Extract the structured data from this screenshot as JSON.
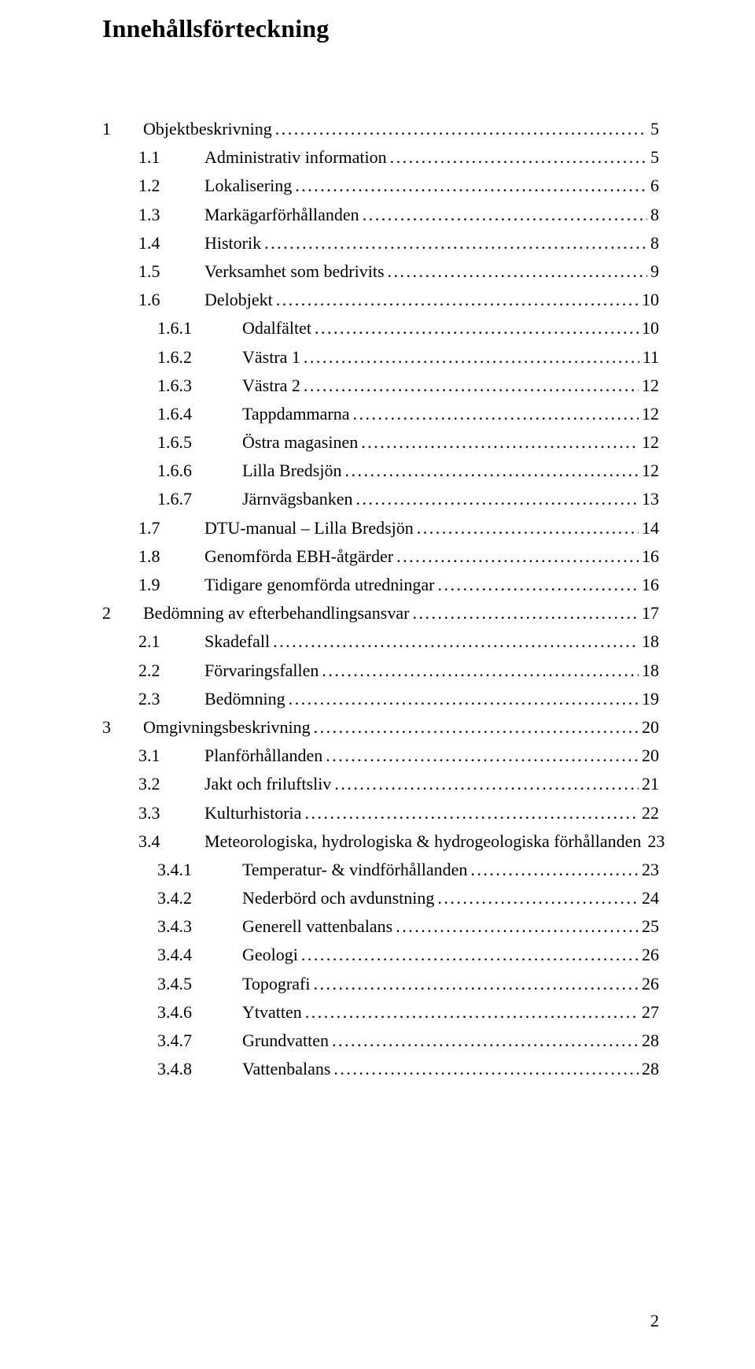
{
  "title": "Innehållsförteckning",
  "page_number": "2",
  "leader_char": ".",
  "entries": [
    {
      "level": 1,
      "num": "1",
      "text": "Objektbeskrivning",
      "page": "5"
    },
    {
      "level": 2,
      "num": "1.1",
      "text": "Administrativ information",
      "page": "5"
    },
    {
      "level": 2,
      "num": "1.2",
      "text": "Lokalisering",
      "page": "6"
    },
    {
      "level": 2,
      "num": "1.3",
      "text": "Markägarförhållanden",
      "page": "8"
    },
    {
      "level": 2,
      "num": "1.4",
      "text": "Historik",
      "page": "8"
    },
    {
      "level": 2,
      "num": "1.5",
      "text": "Verksamhet som bedrivits",
      "page": "9"
    },
    {
      "level": 2,
      "num": "1.6",
      "text": "Delobjekt",
      "page": "10"
    },
    {
      "level": 3,
      "num": "1.6.1",
      "text": "Odalfältet",
      "page": "10"
    },
    {
      "level": 3,
      "num": "1.6.2",
      "text": "Västra 1",
      "page": "11"
    },
    {
      "level": 3,
      "num": "1.6.3",
      "text": "Västra 2",
      "page": "12"
    },
    {
      "level": 3,
      "num": "1.6.4",
      "text": "Tappdammarna",
      "page": "12"
    },
    {
      "level": 3,
      "num": "1.6.5",
      "text": "Östra magasinen",
      "page": "12"
    },
    {
      "level": 3,
      "num": "1.6.6",
      "text": "Lilla Bredsjön",
      "page": "12"
    },
    {
      "level": 3,
      "num": "1.6.7",
      "text": "Järnvägsbanken",
      "page": "13"
    },
    {
      "level": 2,
      "num": "1.7",
      "text": "DTU-manual – Lilla Bredsjön",
      "page": "14"
    },
    {
      "level": 2,
      "num": "1.8",
      "text": "Genomförda EBH-åtgärder",
      "page": "16"
    },
    {
      "level": 2,
      "num": "1.9",
      "text": "Tidigare genomförda utredningar",
      "page": "16"
    },
    {
      "level": 1,
      "num": "2",
      "text": "Bedömning av efterbehandlingsansvar",
      "page": "17"
    },
    {
      "level": 2,
      "num": "2.1",
      "text": "Skadefall",
      "page": "18"
    },
    {
      "level": 2,
      "num": "2.2",
      "text": "Förvaringsfallen",
      "page": "18"
    },
    {
      "level": 2,
      "num": "2.3",
      "text": "Bedömning",
      "page": "19"
    },
    {
      "level": 1,
      "num": "3",
      "text": "Omgivningsbeskrivning",
      "page": "20"
    },
    {
      "level": 2,
      "num": "3.1",
      "text": "Planförhållanden",
      "page": "20"
    },
    {
      "level": 2,
      "num": "3.2",
      "text": "Jakt och friluftsliv",
      "page": "21"
    },
    {
      "level": 2,
      "num": "3.3",
      "text": "Kulturhistoria",
      "page": "22"
    },
    {
      "level": 2,
      "num": "3.4",
      "text": "Meteorologiska, hydrologiska & hydrogeologiska förhållanden",
      "page": "23"
    },
    {
      "level": 3,
      "num": "3.4.1",
      "text": "Temperatur- & vindförhållanden",
      "page": "23"
    },
    {
      "level": 3,
      "num": "3.4.2",
      "text": "Nederbörd och avdunstning",
      "page": "24"
    },
    {
      "level": 3,
      "num": "3.4.3",
      "text": "Generell vattenbalans",
      "page": "25"
    },
    {
      "level": 3,
      "num": "3.4.4",
      "text": "Geologi",
      "page": "26"
    },
    {
      "level": 3,
      "num": "3.4.5",
      "text": "Topografi",
      "page": "26"
    },
    {
      "level": 3,
      "num": "3.4.6",
      "text": "Ytvatten",
      "page": "27"
    },
    {
      "level": 3,
      "num": "3.4.7",
      "text": "Grundvatten",
      "page": "28"
    },
    {
      "level": 3,
      "num": "3.4.8",
      "text": "Vattenbalans",
      "page": "28"
    }
  ]
}
